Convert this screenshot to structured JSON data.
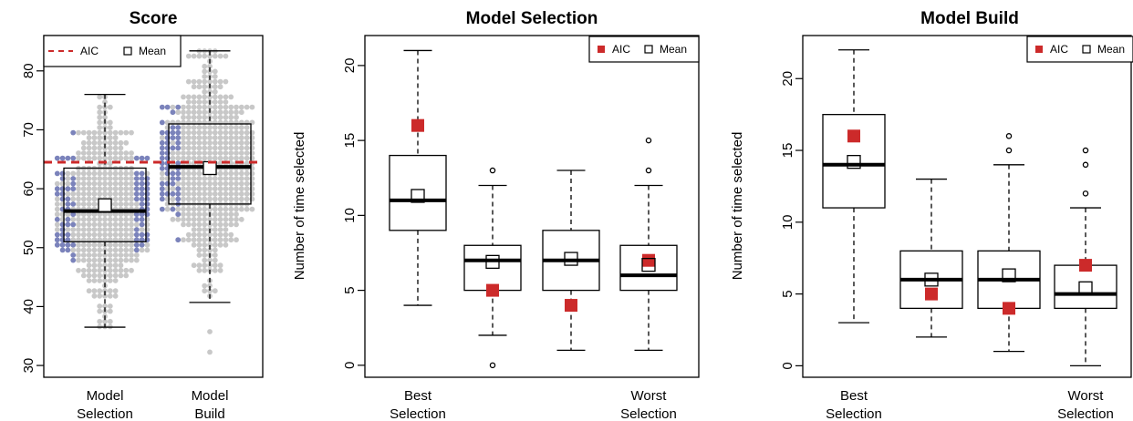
{
  "colors": {
    "aic": "#cc2a2a",
    "dot_gray": "#c8c8c8",
    "dot_blue": "#7b83bb",
    "line": "#000000",
    "mean_fill": "#ffffff"
  },
  "chart_data": [
    {
      "id": "score",
      "type": "box",
      "title": "Score",
      "ylabel": "",
      "ylim": [
        28,
        86
      ],
      "yticks": [
        30,
        40,
        50,
        60,
        70,
        80
      ],
      "groups": [
        {
          "label_lines": [
            "Model",
            "Selection"
          ],
          "whisker_low": 36.5,
          "q1": 51,
          "median": 56.2,
          "q3": 63.5,
          "whisker_high": 76,
          "mean": 57.2,
          "outliers": []
        },
        {
          "label_lines": [
            "Model",
            "Build"
          ],
          "whisker_low": 40.7,
          "q1": 57.4,
          "median": 63.7,
          "q3": 71,
          "whisker_high": 83.4,
          "mean": 63.5,
          "outliers": []
        }
      ],
      "aic_line": 64.5,
      "legend": {
        "items": [
          "AIC",
          "Mean"
        ],
        "position": "top"
      }
    },
    {
      "id": "model-selection",
      "type": "box",
      "title": "Model Selection",
      "ylabel": "Number of time selected",
      "ylim": [
        -0.8,
        22
      ],
      "yticks": [
        0,
        5,
        10,
        15,
        20
      ],
      "groups": [
        {
          "label_lines": [
            "Best",
            "Selection"
          ],
          "whisker_low": 4,
          "q1": 9,
          "median": 11,
          "q3": 14,
          "whisker_high": 21,
          "mean": 11.3,
          "aic": 16,
          "outliers": []
        },
        {
          "label_lines": [],
          "whisker_low": 2,
          "q1": 5,
          "median": 7,
          "q3": 8,
          "whisker_high": 12,
          "mean": 6.9,
          "aic": 5,
          "outliers": [
            0,
            13
          ]
        },
        {
          "label_lines": [],
          "whisker_low": 1,
          "q1": 5,
          "median": 7,
          "q3": 9,
          "whisker_high": 13,
          "mean": 7.1,
          "aic": 4,
          "outliers": []
        },
        {
          "label_lines": [
            "Worst",
            "Selection"
          ],
          "whisker_low": 1,
          "q1": 5,
          "median": 6,
          "q3": 8,
          "whisker_high": 12,
          "mean": 6.7,
          "aic": 7,
          "outliers": [
            13,
            15
          ]
        }
      ],
      "legend": {
        "items": [
          "AIC",
          "Mean"
        ],
        "position": "top-right"
      }
    },
    {
      "id": "model-build",
      "type": "box",
      "title": "Model Build",
      "ylabel": "Number of time selected",
      "ylim": [
        -0.8,
        23
      ],
      "yticks": [
        0,
        5,
        10,
        15,
        20
      ],
      "groups": [
        {
          "label_lines": [
            "Best",
            "Selection"
          ],
          "whisker_low": 3,
          "q1": 11,
          "median": 14,
          "q3": 17.5,
          "whisker_high": 22,
          "mean": 14.2,
          "aic": 16,
          "outliers": []
        },
        {
          "label_lines": [],
          "whisker_low": 2,
          "q1": 4,
          "median": 6,
          "q3": 8,
          "whisker_high": 13,
          "mean": 6,
          "aic": 5,
          "outliers": []
        },
        {
          "label_lines": [],
          "whisker_low": 1,
          "q1": 4,
          "median": 6,
          "q3": 8,
          "whisker_high": 14,
          "mean": 6.3,
          "aic": 4,
          "outliers": [
            15,
            16
          ]
        },
        {
          "label_lines": [
            "Worst",
            "Selection"
          ],
          "whisker_low": 0,
          "q1": 4,
          "median": 5,
          "q3": 7,
          "whisker_high": 11,
          "mean": 5.4,
          "aic": 7,
          "outliers": [
            12,
            14,
            15
          ]
        }
      ],
      "legend": {
        "items": [
          "AIC",
          "Mean"
        ],
        "position": "top-right"
      }
    }
  ]
}
